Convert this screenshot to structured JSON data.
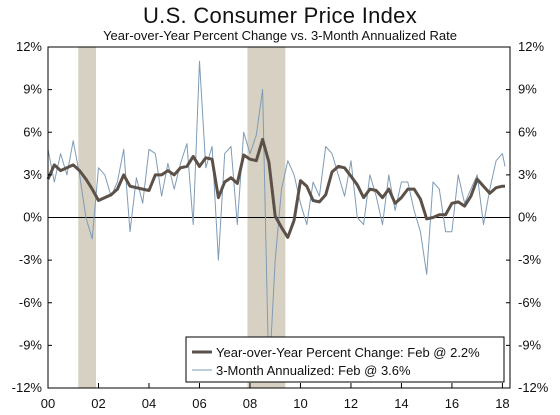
{
  "chart_data": {
    "type": "line",
    "title": "U.S. Consumer Price Index",
    "subtitle": "Year-over-Year Percent Change vs. 3-Month Annualized Rate",
    "ylim": [
      -12,
      12
    ],
    "xlim": [
      2000.0,
      2018.3
    ],
    "y_ticks": [
      "12%",
      "9%",
      "6%",
      "3%",
      "0%",
      "-3%",
      "-6%",
      "-9%",
      "-12%"
    ],
    "x_ticks": [
      "00",
      "02",
      "04",
      "06",
      "08",
      "10",
      "12",
      "14",
      "16",
      "18"
    ],
    "grid": false,
    "legend_position": "bottom-right",
    "recessions": [
      [
        2001.2,
        2001.9
      ],
      [
        2007.9,
        2009.4
      ]
    ],
    "series": [
      {
        "name": "Year-over-Year Percent Change: Feb @ 2.2%",
        "color": "#5b5148",
        "x": [
          2000.0,
          2000.25,
          2000.5,
          2000.75,
          2001.0,
          2001.25,
          2001.5,
          2001.75,
          2002.0,
          2002.25,
          2002.5,
          2002.75,
          2003.0,
          2003.25,
          2003.5,
          2003.75,
          2004.0,
          2004.25,
          2004.5,
          2004.75,
          2005.0,
          2005.25,
          2005.5,
          2005.75,
          2006.0,
          2006.25,
          2006.5,
          2006.75,
          2007.0,
          2007.25,
          2007.5,
          2007.75,
          2008.0,
          2008.25,
          2008.5,
          2008.75,
          2009.0,
          2009.25,
          2009.5,
          2009.75,
          2010.0,
          2010.25,
          2010.5,
          2010.75,
          2011.0,
          2011.25,
          2011.5,
          2011.75,
          2012.0,
          2012.25,
          2012.5,
          2012.75,
          2013.0,
          2013.25,
          2013.5,
          2013.75,
          2014.0,
          2014.25,
          2014.5,
          2014.75,
          2015.0,
          2015.25,
          2015.5,
          2015.75,
          2016.0,
          2016.25,
          2016.5,
          2016.75,
          2017.0,
          2017.25,
          2017.5,
          2017.75,
          2018.0,
          2018.1
        ],
        "values": [
          2.7,
          3.7,
          3.3,
          3.5,
          3.7,
          3.3,
          2.7,
          2.0,
          1.2,
          1.4,
          1.6,
          2.0,
          3.0,
          2.2,
          2.1,
          2.0,
          1.9,
          3.0,
          3.0,
          3.3,
          3.0,
          3.5,
          3.6,
          4.3,
          3.6,
          4.2,
          4.1,
          1.4,
          2.5,
          2.8,
          2.4,
          4.4,
          4.1,
          4.0,
          5.5,
          3.9,
          0.1,
          -0.7,
          -1.4,
          -0.2,
          2.6,
          2.2,
          1.2,
          1.1,
          1.6,
          3.2,
          3.6,
          3.5,
          2.9,
          2.3,
          1.4,
          2.0,
          1.9,
          1.4,
          2.0,
          1.0,
          1.4,
          2.0,
          2.0,
          1.3,
          -0.1,
          0.0,
          0.2,
          0.2,
          1.0,
          1.1,
          0.8,
          1.5,
          2.7,
          2.2,
          1.7,
          2.1,
          2.2,
          2.2
        ]
      },
      {
        "name": "3-Month Annualized: Feb @ 3.6%",
        "color": "#7f9bb5",
        "x": [
          2000.0,
          2000.25,
          2000.5,
          2000.75,
          2001.0,
          2001.25,
          2001.5,
          2001.75,
          2002.0,
          2002.25,
          2002.5,
          2002.75,
          2003.0,
          2003.25,
          2003.5,
          2003.75,
          2004.0,
          2004.25,
          2004.5,
          2004.75,
          2005.0,
          2005.25,
          2005.5,
          2005.75,
          2006.0,
          2006.25,
          2006.5,
          2006.75,
          2007.0,
          2007.25,
          2007.5,
          2007.75,
          2008.0,
          2008.25,
          2008.5,
          2008.75,
          2009.0,
          2009.25,
          2009.5,
          2009.75,
          2010.0,
          2010.25,
          2010.5,
          2010.75,
          2011.0,
          2011.25,
          2011.5,
          2011.75,
          2012.0,
          2012.25,
          2012.5,
          2012.75,
          2013.0,
          2013.25,
          2013.5,
          2013.75,
          2014.0,
          2014.25,
          2014.5,
          2014.75,
          2015.0,
          2015.25,
          2015.5,
          2015.75,
          2016.0,
          2016.25,
          2016.5,
          2016.75,
          2017.0,
          2017.25,
          2017.5,
          2017.75,
          2018.0,
          2018.1
        ],
        "values": [
          4.8,
          2.5,
          4.5,
          3.0,
          5.4,
          3.0,
          0.0,
          -1.5,
          3.5,
          3.0,
          1.5,
          2.5,
          4.8,
          -1.0,
          2.8,
          1.0,
          4.8,
          4.5,
          1.5,
          3.8,
          2.0,
          3.8,
          5.2,
          -0.5,
          11.0,
          3.5,
          5.0,
          -3.0,
          4.5,
          5.0,
          -0.5,
          6.0,
          4.5,
          5.8,
          9.0,
          -11.5,
          -3.0,
          2.0,
          4.0,
          3.0,
          1.0,
          -0.5,
          2.5,
          1.5,
          5.0,
          4.5,
          3.0,
          1.5,
          4.0,
          0.0,
          -0.5,
          3.0,
          1.5,
          -0.5,
          3.0,
          0.5,
          2.5,
          2.5,
          0.5,
          -1.0,
          -4.0,
          2.5,
          2.0,
          -1.0,
          -1.0,
          3.0,
          1.0,
          2.0,
          3.0,
          -0.5,
          2.0,
          4.0,
          4.5,
          3.6
        ]
      }
    ]
  }
}
